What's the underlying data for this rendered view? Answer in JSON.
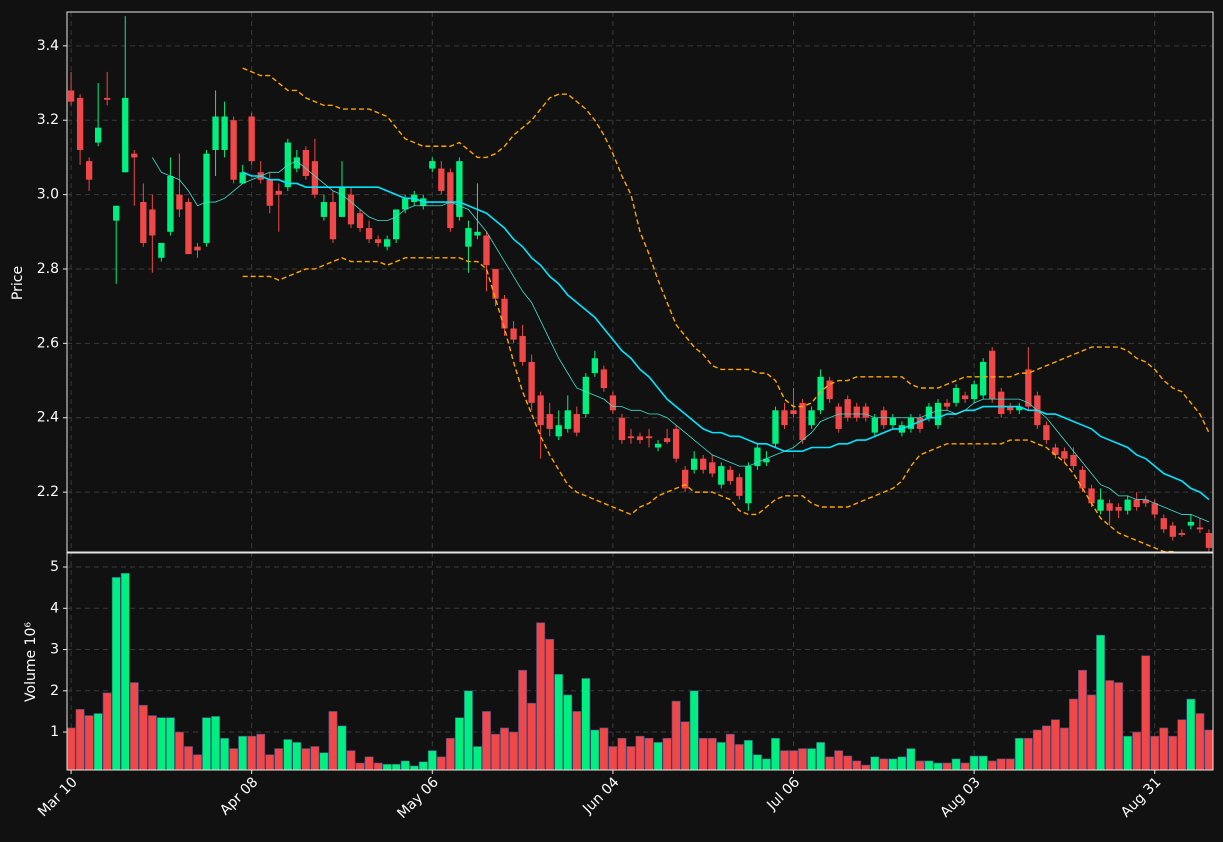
{
  "chart_data": {
    "type": "candlestick",
    "ylabel": "Price",
    "xlim": [
      -0.45,
      126.45
    ],
    "xticks": [
      {
        "value": 0,
        "label": "Mar 10"
      },
      {
        "value": 20,
        "label": "Apr 08"
      },
      {
        "value": 40,
        "label": "May 06"
      },
      {
        "value": 60,
        "label": "Jun 04"
      },
      {
        "value": 80,
        "label": "Jul 06"
      },
      {
        "value": 100,
        "label": "Aug 03"
      },
      {
        "value": 120,
        "label": "Aug 31"
      }
    ],
    "ylim": [
      2.039,
      3.491
    ],
    "yticks": [
      2.2,
      2.4,
      2.6,
      2.8,
      {
        "value": 3,
        "label": "3.0"
      },
      3.2,
      3.4
    ],
    "grid": true,
    "up_color": "#00f080",
    "down_color": "#f04848",
    "open": [
      3.28,
      3.26,
      3.09,
      3.14,
      3.26,
      2.93,
      3.06,
      3.11,
      2.98,
      2.96,
      2.83,
      2.9,
      3.0,
      2.98,
      2.86,
      2.87,
      3.12,
      3.12,
      3.2,
      3.03,
      3.21,
      3.06,
      3.04,
      3.01,
      3.02,
      3.07,
      3.12,
      3.09,
      2.94,
      2.98,
      2.94,
      3.0,
      2.95,
      2.91,
      2.88,
      2.86,
      2.88,
      2.96,
      2.98,
      2.97,
      3.07,
      3.07,
      3.06,
      2.94,
      2.86,
      2.89,
      2.89,
      2.8,
      2.72,
      2.64,
      2.62,
      2.55,
      2.46,
      2.41,
      2.35,
      2.37,
      2.41,
      2.41,
      2.52,
      2.53,
      2.46,
      2.4,
      2.35,
      2.35,
      2.35,
      2.32,
      2.345,
      2.37,
      2.26,
      2.26,
      2.29,
      2.28,
      2.22,
      2.26,
      2.24,
      2.17,
      2.27,
      2.28,
      2.33,
      2.42,
      2.42,
      2.44,
      2.38,
      2.42,
      2.5,
      2.43,
      2.45,
      2.43,
      2.43,
      2.36,
      2.42,
      2.38,
      2.36,
      2.37,
      2.4,
      2.4,
      2.38,
      2.44,
      2.44,
      2.46,
      2.45,
      2.46,
      2.58,
      2.47,
      2.43,
      2.42,
      2.53,
      2.46,
      2.38,
      2.32,
      2.31,
      2.3,
      2.26,
      2.21,
      2.15,
      2.17,
      2.16,
      2.15,
      2.18,
      2.18,
      2.17,
      2.13,
      2.11,
      2.09,
      2.11,
      2.105,
      2.09
    ],
    "high": [
      3.33,
      3.27,
      3.1,
      3.3,
      3.33,
      2.97,
      3.48,
      3.12,
      3.03,
      3.0,
      2.87,
      3.1,
      3.11,
      2.99,
      2.87,
      3.12,
      3.28,
      3.25,
      3.21,
      3.08,
      3.22,
      3.09,
      3.06,
      3.03,
      3.15,
      3.12,
      3.13,
      3.15,
      3.0,
      3.01,
      3.09,
      3.02,
      2.96,
      2.93,
      2.89,
      2.89,
      2.96,
      3.0,
      3.01,
      3.0,
      3.1,
      3.09,
      3.07,
      3.1,
      2.93,
      3.03,
      2.9,
      2.8,
      2.73,
      2.66,
      2.65,
      2.57,
      2.47,
      2.44,
      2.42,
      2.46,
      2.43,
      2.52,
      2.58,
      2.54,
      2.47,
      2.41,
      2.37,
      2.36,
      2.37,
      2.34,
      2.37,
      2.38,
      2.27,
      2.31,
      2.3,
      2.3,
      2.28,
      2.27,
      2.25,
      2.28,
      2.33,
      2.31,
      2.43,
      2.44,
      2.48,
      2.45,
      2.43,
      2.53,
      2.51,
      2.44,
      2.46,
      2.44,
      2.44,
      2.41,
      2.43,
      2.41,
      2.39,
      2.41,
      2.41,
      2.44,
      2.45,
      2.45,
      2.49,
      2.47,
      2.5,
      2.56,
      2.59,
      2.48,
      2.44,
      2.44,
      2.59,
      2.47,
      2.39,
      2.33,
      2.32,
      2.32,
      2.27,
      2.22,
      2.21,
      2.18,
      2.17,
      2.19,
      2.2,
      2.19,
      2.18,
      2.14,
      2.12,
      2.1,
      2.14,
      2.13,
      2.1
    ],
    "low": [
      3.24,
      3.08,
      3.01,
      3.13,
      3.24,
      2.76,
      3.06,
      2.97,
      2.86,
      2.79,
      2.82,
      2.89,
      2.94,
      2.84,
      2.83,
      2.86,
      3.05,
      3.1,
      3.03,
      3.03,
      3.08,
      3.03,
      2.95,
      2.9,
      3.01,
      3.06,
      3.04,
      2.99,
      2.93,
      2.87,
      2.94,
      2.91,
      2.9,
      2.87,
      2.86,
      2.85,
      2.87,
      2.95,
      2.97,
      2.96,
      3.06,
      3.0,
      2.9,
      2.93,
      2.79,
      2.88,
      2.74,
      2.7,
      2.62,
      2.6,
      2.54,
      2.42,
      2.29,
      2.35,
      2.34,
      2.36,
      2.35,
      2.4,
      2.51,
      2.47,
      2.41,
      2.33,
      2.33,
      2.33,
      2.32,
      2.31,
      2.33,
      2.28,
      2.2,
      2.25,
      2.25,
      2.24,
      2.21,
      2.22,
      2.18,
      2.15,
      2.26,
      2.27,
      2.32,
      2.37,
      2.4,
      2.33,
      2.37,
      2.41,
      2.44,
      2.36,
      2.39,
      2.39,
      2.39,
      2.35,
      2.37,
      2.37,
      2.35,
      2.36,
      2.36,
      2.39,
      2.37,
      2.42,
      2.43,
      2.44,
      2.44,
      2.45,
      2.44,
      2.4,
      2.41,
      2.41,
      2.42,
      2.37,
      2.33,
      2.29,
      2.28,
      2.26,
      2.2,
      2.16,
      2.14,
      2.11,
      2.13,
      2.14,
      2.15,
      2.16,
      2.13,
      2.09,
      2.07,
      2.08,
      2.1,
      2.09,
      2.04
    ],
    "close": [
      3.25,
      3.12,
      3.04,
      3.18,
      3.255,
      2.97,
      3.26,
      3.1,
      2.87,
      2.89,
      2.87,
      3.05,
      2.96,
      2.84,
      2.85,
      3.11,
      3.21,
      3.21,
      3.04,
      3.06,
      3.09,
      3.04,
      2.97,
      3.0,
      3.14,
      3.1,
      3.05,
      3.0,
      2.98,
      2.88,
      3.02,
      2.92,
      2.91,
      2.88,
      2.87,
      2.88,
      2.96,
      2.99,
      3.0,
      2.99,
      3.09,
      3.01,
      2.91,
      3.09,
      2.91,
      2.9,
      2.81,
      2.72,
      2.64,
      2.61,
      2.55,
      2.44,
      2.38,
      2.37,
      2.38,
      2.42,
      2.36,
      2.51,
      2.56,
      2.48,
      2.42,
      2.34,
      2.345,
      2.34,
      2.345,
      2.33,
      2.335,
      2.29,
      2.21,
      2.29,
      2.26,
      2.25,
      2.27,
      2.23,
      2.19,
      2.27,
      2.32,
      2.29,
      2.42,
      2.38,
      2.41,
      2.34,
      2.42,
      2.51,
      2.45,
      2.37,
      2.4,
      2.4,
      2.4,
      2.4,
      2.38,
      2.4,
      2.38,
      2.4,
      2.37,
      2.43,
      2.44,
      2.43,
      2.48,
      2.45,
      2.49,
      2.55,
      2.45,
      2.41,
      2.42,
      2.43,
      2.43,
      2.38,
      2.34,
      2.3,
      2.29,
      2.27,
      2.21,
      2.17,
      2.18,
      2.15,
      2.15,
      2.18,
      2.16,
      2.17,
      2.14,
      2.1,
      2.08,
      2.085,
      2.12,
      2.1,
      2.05
    ],
    "lines": [
      {
        "color": "#00e5ff",
        "width": 1.6,
        "dashed": false,
        "values": [
          null,
          null,
          null,
          null,
          null,
          null,
          null,
          null,
          null,
          null,
          null,
          null,
          null,
          null,
          null,
          null,
          null,
          null,
          null,
          3.06,
          3.05,
          3.05,
          3.04,
          3.04,
          3.03,
          3.03,
          3.02,
          3.02,
          3.02,
          3.02,
          3.02,
          3.02,
          3.02,
          3.02,
          3.02,
          3.01,
          3.0,
          2.99,
          2.99,
          2.98,
          2.98,
          2.98,
          2.98,
          2.98,
          2.97,
          2.96,
          2.95,
          2.93,
          2.91,
          2.88,
          2.86,
          2.83,
          2.81,
          2.78,
          2.76,
          2.73,
          2.71,
          2.69,
          2.67,
          2.64,
          2.61,
          2.58,
          2.56,
          2.53,
          2.51,
          2.48,
          2.45,
          2.43,
          2.41,
          2.39,
          2.37,
          2.36,
          2.36,
          2.35,
          2.35,
          2.34,
          2.33,
          2.33,
          2.32,
          2.31,
          2.31,
          2.31,
          2.32,
          2.32,
          2.32,
          2.33,
          2.33,
          2.34,
          2.34,
          2.35,
          2.36,
          2.37,
          2.37,
          2.38,
          2.39,
          2.4,
          2.4,
          2.41,
          2.41,
          2.42,
          2.42,
          2.43,
          2.43,
          2.43,
          2.43,
          2.43,
          2.42,
          2.42,
          2.41,
          2.41,
          2.4,
          2.39,
          2.38,
          2.37,
          2.35,
          2.34,
          2.33,
          2.32,
          2.3,
          2.29,
          2.27,
          2.25,
          2.24,
          2.23,
          2.21,
          2.2,
          2.18
        ]
      },
      {
        "color": "#40e0d0",
        "width": 0.8,
        "dashed": false,
        "values": [
          null,
          null,
          null,
          null,
          null,
          null,
          null,
          null,
          null,
          3.1,
          3.06,
          3.05,
          3.04,
          3.01,
          2.97,
          2.98,
          2.98,
          2.99,
          3.01,
          3.03,
          3.04,
          3.05,
          3.06,
          3.06,
          3.08,
          3.09,
          3.07,
          3.05,
          3.03,
          3.01,
          3.0,
          2.98,
          2.96,
          2.94,
          2.93,
          2.93,
          2.94,
          2.96,
          2.97,
          2.97,
          2.97,
          2.97,
          2.98,
          2.97,
          2.96,
          2.93,
          2.9,
          2.86,
          2.82,
          2.78,
          2.74,
          2.71,
          2.66,
          2.61,
          2.56,
          2.52,
          2.48,
          2.47,
          2.46,
          2.45,
          2.43,
          2.43,
          2.42,
          2.42,
          2.41,
          2.41,
          2.4,
          2.38,
          2.36,
          2.34,
          2.32,
          2.3,
          2.29,
          2.28,
          2.27,
          2.27,
          2.28,
          2.29,
          2.3,
          2.31,
          2.32,
          2.34,
          2.36,
          2.39,
          2.4,
          2.41,
          2.41,
          2.41,
          2.41,
          2.4,
          2.4,
          2.4,
          2.4,
          2.4,
          2.4,
          2.41,
          2.42,
          2.42,
          2.41,
          2.42,
          2.44,
          2.45,
          2.45,
          2.45,
          2.45,
          2.45,
          2.44,
          2.42,
          2.4,
          2.37,
          2.34,
          2.31,
          2.28,
          2.25,
          2.22,
          2.21,
          2.19,
          2.19,
          2.18,
          2.18,
          2.17,
          2.16,
          2.15,
          2.14,
          2.14,
          2.13,
          2.12
        ]
      },
      {
        "color": "#ffa500",
        "width": 1.4,
        "dashed": true,
        "values": [
          null,
          null,
          null,
          null,
          null,
          null,
          null,
          null,
          null,
          null,
          null,
          null,
          null,
          null,
          null,
          null,
          null,
          null,
          null,
          3.34,
          3.33,
          3.32,
          3.32,
          3.3,
          3.28,
          3.28,
          3.26,
          3.25,
          3.24,
          3.24,
          3.23,
          3.23,
          3.23,
          3.23,
          3.22,
          3.21,
          3.18,
          3.15,
          3.14,
          3.13,
          3.13,
          3.13,
          3.13,
          3.14,
          3.12,
          3.1,
          3.1,
          3.11,
          3.13,
          3.16,
          3.18,
          3.2,
          3.23,
          3.26,
          3.27,
          3.27,
          3.25,
          3.23,
          3.2,
          3.16,
          3.11,
          3.05,
          3.0,
          2.9,
          2.84,
          2.77,
          2.71,
          2.65,
          2.62,
          2.59,
          2.57,
          2.54,
          2.53,
          2.53,
          2.53,
          2.53,
          2.52,
          2.52,
          2.5,
          2.45,
          2.43,
          2.43,
          2.44,
          2.47,
          2.49,
          2.5,
          2.5,
          2.51,
          2.51,
          2.51,
          2.51,
          2.51,
          2.51,
          2.49,
          2.48,
          2.48,
          2.48,
          2.49,
          2.5,
          2.51,
          2.51,
          2.51,
          2.51,
          2.51,
          2.51,
          2.52,
          2.52,
          2.53,
          2.54,
          2.55,
          2.56,
          2.57,
          2.58,
          2.59,
          2.59,
          2.59,
          2.59,
          2.58,
          2.56,
          2.55,
          2.53,
          2.5,
          2.48,
          2.47,
          2.44,
          2.41,
          2.36
        ]
      },
      {
        "color": "#ffa500",
        "width": 1.4,
        "dashed": true,
        "values": [
          null,
          null,
          null,
          null,
          null,
          null,
          null,
          null,
          null,
          null,
          null,
          null,
          null,
          null,
          null,
          null,
          null,
          null,
          null,
          2.78,
          2.78,
          2.78,
          2.78,
          2.77,
          2.78,
          2.79,
          2.8,
          2.8,
          2.81,
          2.82,
          2.83,
          2.82,
          2.82,
          2.82,
          2.82,
          2.81,
          2.82,
          2.83,
          2.83,
          2.83,
          2.83,
          2.83,
          2.83,
          2.83,
          2.82,
          2.82,
          2.8,
          2.72,
          2.64,
          2.55,
          2.47,
          2.41,
          2.35,
          2.3,
          2.26,
          2.22,
          2.2,
          2.19,
          2.18,
          2.17,
          2.16,
          2.15,
          2.14,
          2.16,
          2.17,
          2.19,
          2.2,
          2.21,
          2.22,
          2.2,
          2.2,
          2.2,
          2.19,
          2.18,
          2.15,
          2.14,
          2.14,
          2.16,
          2.18,
          2.19,
          2.19,
          2.19,
          2.17,
          2.16,
          2.16,
          2.16,
          2.16,
          2.17,
          2.18,
          2.19,
          2.2,
          2.21,
          2.23,
          2.27,
          2.3,
          2.31,
          2.32,
          2.33,
          2.33,
          2.33,
          2.33,
          2.33,
          2.33,
          2.33,
          2.34,
          2.34,
          2.34,
          2.33,
          2.32,
          2.3,
          2.28,
          2.25,
          2.21,
          2.17,
          2.13,
          2.11,
          2.09,
          2.08,
          2.07,
          2.06,
          2.05,
          2.04,
          2.04,
          2.03,
          2.03,
          2.02,
          2.02
        ]
      }
    ],
    "volume": {
      "ylabel": "Volume  10⁶",
      "ylim": [
        0.08,
        5.34
      ],
      "yticks": [
        1,
        2,
        3,
        4,
        5
      ],
      "values": [
        1.1,
        1.55,
        1.4,
        1.45,
        1.95,
        4.75,
        4.85,
        2.2,
        1.65,
        1.4,
        1.35,
        1.35,
        1.0,
        0.65,
        0.45,
        1.35,
        1.38,
        0.85,
        0.6,
        0.9,
        0.9,
        0.95,
        0.45,
        0.6,
        0.82,
        0.75,
        0.6,
        0.65,
        0.5,
        1.5,
        1.15,
        0.55,
        0.25,
        0.4,
        0.25,
        0.22,
        0.22,
        0.3,
        0.18,
        0.28,
        0.55,
        0.4,
        0.85,
        1.35,
        2.0,
        0.65,
        1.5,
        0.95,
        1.1,
        1.0,
        2.5,
        1.7,
        3.65,
        3.25,
        2.4,
        1.9,
        1.5,
        2.3,
        1.05,
        1.1,
        0.65,
        0.85,
        0.65,
        0.9,
        0.85,
        0.75,
        0.85,
        1.75,
        1.25,
        2.0,
        0.85,
        0.85,
        0.75,
        0.95,
        0.7,
        0.8,
        0.45,
        0.35,
        0.85,
        0.55,
        0.55,
        0.6,
        0.6,
        0.75,
        0.4,
        0.55,
        0.42,
        0.3,
        0.2,
        0.4,
        0.35,
        0.35,
        0.4,
        0.6,
        0.3,
        0.3,
        0.25,
        0.25,
        0.35,
        0.25,
        0.42,
        0.42,
        0.3,
        0.35,
        0.35,
        0.85,
        0.85,
        1.05,
        1.15,
        1.3,
        1.1,
        1.8,
        2.5,
        1.9,
        3.35,
        2.25,
        2.2,
        0.9,
        1.0,
        2.85,
        0.9,
        1.1,
        0.9,
        1.3,
        1.8,
        1.45,
        1.05
      ]
    }
  }
}
